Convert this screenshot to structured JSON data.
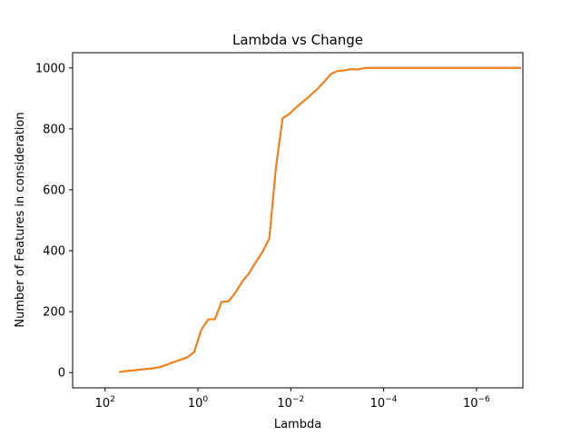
{
  "chart_data": {
    "type": "line",
    "title": "Lambda vs Change",
    "xlabel": "Lambda",
    "ylabel": "Number of Features in consideration",
    "x_scale": "log",
    "x_reversed": true,
    "xlim": [
      500,
      1e-07
    ],
    "ylim": [
      -50,
      1050
    ],
    "grid": false,
    "x_ticks": [
      {
        "value": 100,
        "label_base": "10",
        "label_exp": "2"
      },
      {
        "value": 1,
        "label_base": "10",
        "label_exp": "0"
      },
      {
        "value": 0.01,
        "label_base": "10",
        "label_exp": "−2"
      },
      {
        "value": 0.0001,
        "label_base": "10",
        "label_exp": "−4"
      },
      {
        "value": 1e-06,
        "label_base": "10",
        "label_exp": "−6"
      }
    ],
    "y_ticks": [
      0,
      200,
      400,
      600,
      800,
      1000
    ],
    "series": [
      {
        "color": "#1f77b4",
        "x": [
          50,
          35,
          25,
          18,
          13,
          9.2,
          6.6,
          4.7,
          3.4,
          2.4,
          1.7,
          1.2,
          0.85,
          0.6,
          0.43,
          0.31,
          0.22,
          0.16,
          0.11,
          0.08,
          0.057,
          0.041,
          0.029,
          0.021,
          0.015,
          0.0105,
          0.0075,
          0.0054,
          0.0038,
          0.0027,
          0.0019,
          0.00137,
          0.00098,
          0.0007,
          0.0005,
          0.00035,
          0.00025,
          0.00018,
          0.00013,
          9e-05,
          6.5e-05,
          4.6e-05,
          3.3e-05,
          2.36e-05,
          1.68e-05,
          1.2e-05,
          1.5e-06,
          1.1e-07
        ],
        "y": [
          2,
          5,
          7,
          10,
          12,
          14,
          18,
          26,
          34,
          42,
          50,
          68,
          140,
          175,
          175,
          232,
          234,
          260,
          300,
          325,
          362,
          395,
          440,
          670,
          835,
          850,
          872,
          890,
          910,
          930,
          955,
          980,
          990,
          992,
          996,
          995,
          1000,
          1000,
          1000,
          1000,
          1000,
          1000,
          1000,
          1000,
          1000,
          1000,
          1000,
          1000
        ]
      },
      {
        "color": "#ff7f0e",
        "x": [
          50,
          35,
          25,
          18,
          13,
          9.2,
          6.6,
          4.7,
          3.4,
          2.4,
          1.7,
          1.2,
          0.85,
          0.6,
          0.43,
          0.31,
          0.22,
          0.16,
          0.11,
          0.08,
          0.057,
          0.041,
          0.029,
          0.021,
          0.015,
          0.0105,
          0.0075,
          0.0054,
          0.0038,
          0.0027,
          0.0019,
          0.00137,
          0.00098,
          0.0007,
          0.0005,
          0.00035,
          0.00025,
          0.00018,
          0.00013,
          9e-05,
          6.5e-05,
          4.6e-05,
          3.3e-05,
          2.36e-05,
          1.68e-05,
          1.2e-05,
          1.5e-06,
          1.1e-07
        ],
        "y": [
          2,
          5,
          7,
          10,
          12,
          14,
          18,
          26,
          34,
          42,
          50,
          68,
          140,
          175,
          175,
          232,
          234,
          260,
          300,
          325,
          362,
          395,
          440,
          670,
          835,
          850,
          872,
          890,
          910,
          930,
          955,
          980,
          990,
          992,
          996,
          995,
          1000,
          1000,
          1000,
          1000,
          1000,
          1000,
          1000,
          1000,
          1000,
          1000,
          1000,
          1000
        ]
      }
    ]
  }
}
